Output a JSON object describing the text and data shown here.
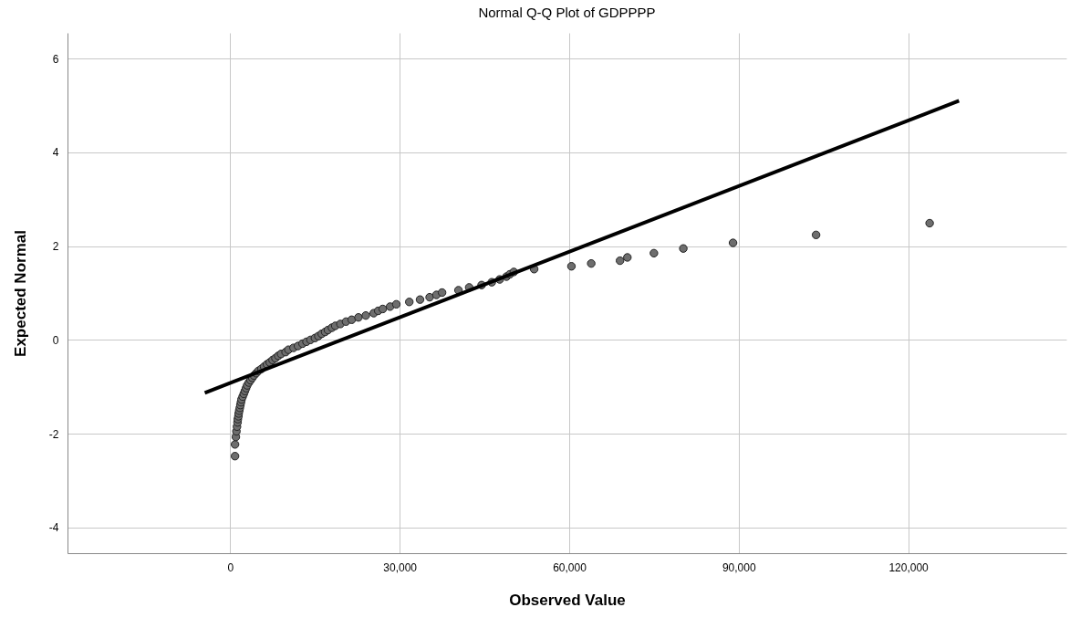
{
  "chart_data": {
    "type": "scatter",
    "title": "Normal Q-Q Plot of GDPPPP",
    "xlabel": "Observed Value",
    "ylabel": "Expected Normal",
    "xlim": [
      -28800,
      148000
    ],
    "ylim": [
      -4.55,
      6.55
    ],
    "xticks": [
      {
        "value": 0,
        "label": "0"
      },
      {
        "value": 30000,
        "label": "30,000"
      },
      {
        "value": 60000,
        "label": "60,000"
      },
      {
        "value": 90000,
        "label": "90,000"
      },
      {
        "value": 120000,
        "label": "120,000"
      }
    ],
    "yticks": [
      -4,
      -2,
      0,
      2,
      4,
      6
    ],
    "grid": true,
    "series": [
      {
        "marker": "circle",
        "color": "#6e6e6e",
        "x": [
          850,
          850,
          1000,
          1100,
          1200,
          1300,
          1350,
          1450,
          1500,
          1600,
          1700,
          1800,
          1900,
          2000,
          2200,
          2400,
          2600,
          2800,
          3000,
          3300,
          3600,
          3900,
          4200,
          4600,
          5000,
          5500,
          6000,
          6500,
          7000,
          7500,
          8000,
          8500,
          9000,
          9800,
          10300,
          11200,
          12000,
          12800,
          13500,
          14200,
          15000,
          15600,
          16200,
          16800,
          17300,
          18000,
          18600,
          19500,
          20500,
          21500,
          22700,
          24000,
          25400,
          26200,
          27000,
          28300,
          29400,
          31700,
          33600,
          35300,
          36500,
          37500,
          40400,
          42300,
          44500,
          46300,
          47700,
          48900,
          49500,
          50200,
          53800,
          60400,
          63900,
          69000,
          70300,
          75000,
          80200,
          89000,
          103700,
          123800
        ],
        "values": [
          -2.48,
          -2.23,
          -2.07,
          -1.95,
          -1.85,
          -1.76,
          -1.69,
          -1.63,
          -1.57,
          -1.51,
          -1.45,
          -1.39,
          -1.33,
          -1.27,
          -1.21,
          -1.15,
          -1.09,
          -1.03,
          -0.97,
          -0.91,
          -0.86,
          -0.81,
          -0.76,
          -0.71,
          -0.66,
          -0.62,
          -0.57,
          -0.52,
          -0.48,
          -0.43,
          -0.39,
          -0.34,
          -0.3,
          -0.26,
          -0.21,
          -0.17,
          -0.13,
          -0.08,
          -0.04,
          0,
          0.04,
          0.08,
          0.13,
          0.17,
          0.21,
          0.26,
          0.3,
          0.34,
          0.39,
          0.43,
          0.48,
          0.52,
          0.57,
          0.62,
          0.66,
          0.71,
          0.76,
          0.81,
          0.86,
          0.91,
          0.96,
          1.01,
          1.06,
          1.12,
          1.17,
          1.23,
          1.29,
          1.35,
          1.4,
          1.45,
          1.51,
          1.57,
          1.63,
          1.69,
          1.76,
          1.85,
          1.95,
          2.07,
          2.24,
          2.49
        ]
      },
      {
        "type": "line",
        "marker": "none",
        "color": "#000000",
        "x": [
          -4500,
          129000
        ],
        "values": [
          -1.13,
          5.1
        ]
      }
    ]
  }
}
